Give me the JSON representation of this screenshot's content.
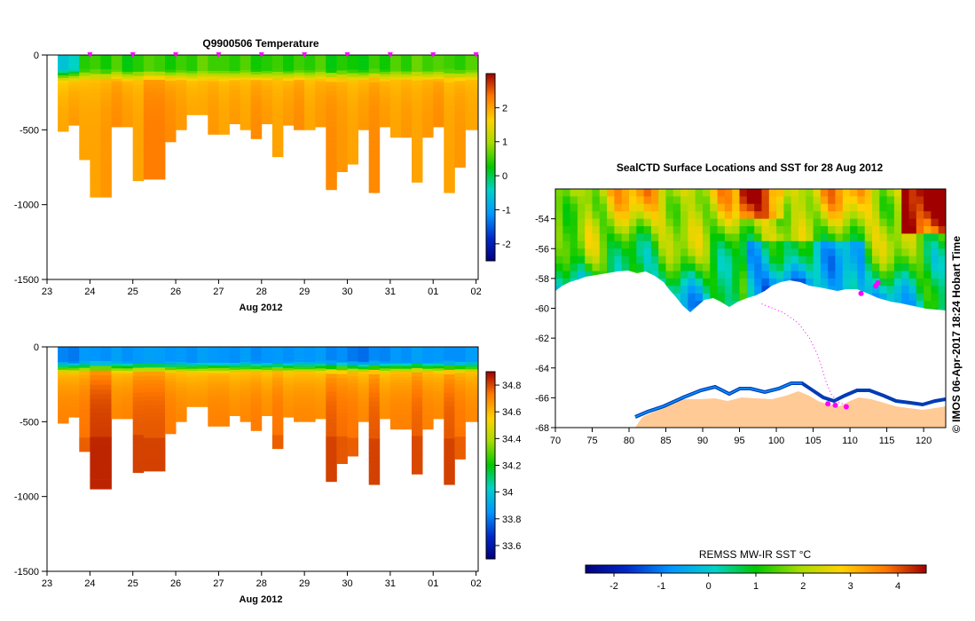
{
  "figure": {
    "credit": "© IMOS 06-Apr-2017 18:24 Hobart Time"
  },
  "chart_data": [
    {
      "type": "heatmap",
      "title": "Q9900506  Temperature",
      "xlabel": "Aug 2012",
      "ylabel": "",
      "x_tick_labels": [
        "23",
        "24",
        "25",
        "26",
        "27",
        "28",
        "29",
        "30",
        "31",
        "01",
        "02"
      ],
      "y_ticks": [
        0,
        -500,
        -1000,
        -1500
      ],
      "ylim": [
        -1500,
        0
      ],
      "colorbar": {
        "ticks": [
          -2,
          -1,
          0,
          1,
          2
        ],
        "range": [
          -2.5,
          3.0
        ]
      },
      "profile_markers_day": [
        24,
        25,
        26,
        27,
        28,
        29,
        30,
        31,
        32,
        33
      ],
      "profiles": {
        "start_day": [
          23.25,
          23.5,
          23.75,
          24.0,
          24.25,
          24.5,
          24.75,
          25.0,
          25.25,
          25.5,
          25.75,
          26.0,
          26.25,
          26.5,
          26.75,
          27.0,
          27.25,
          27.5,
          27.75,
          28.0,
          28.25,
          28.5,
          28.75,
          29.0,
          29.25,
          29.5,
          29.75,
          30.0,
          30.25,
          30.5,
          30.75,
          31.0,
          31.25,
          31.5,
          31.75,
          32.0,
          32.25,
          32.5,
          32.75
        ],
        "max_depth_m": [
          510,
          470,
          700,
          950,
          950,
          480,
          480,
          840,
          830,
          830,
          580,
          500,
          400,
          400,
          530,
          530,
          460,
          500,
          560,
          460,
          680,
          470,
          500,
          500,
          480,
          900,
          780,
          730,
          500,
          920,
          480,
          550,
          550,
          850,
          550,
          480,
          920,
          750,
          500
        ],
        "surface_value": [
          -0.6,
          -0.4,
          0.4,
          0.5,
          0.3,
          0.6,
          0.2,
          0.4,
          0.6,
          0.5,
          0.3,
          0.5,
          0.4,
          0.7,
          0.5,
          0.5,
          0.4,
          0.6,
          0.3,
          0.4,
          0.5,
          0.3,
          0.5,
          0.4,
          0.6,
          0.2,
          0.4,
          0.3,
          0.2,
          0.5,
          0.3,
          0.6,
          0.4,
          0.7,
          0.5,
          0.6,
          0.5,
          0.4,
          0.6
        ],
        "deep_value": [
          2.0,
          2.1,
          2.0,
          2.0,
          2.1,
          2.2,
          2.1,
          2.0,
          2.3,
          2.3,
          2.2,
          2.1,
          2.0,
          2.0,
          2.1,
          2.0,
          2.1,
          2.0,
          2.2,
          2.1,
          2.0,
          2.1,
          2.2,
          2.0,
          2.1,
          2.2,
          2.1,
          2.0,
          2.1,
          2.2,
          2.1,
          2.0,
          2.1,
          2.0,
          2.1,
          2.2,
          2.0,
          2.1,
          2.0
        ]
      }
    },
    {
      "type": "heatmap",
      "title": "",
      "xlabel": "Aug 2012",
      "ylabel": "",
      "x_tick_labels": [
        "23",
        "24",
        "25",
        "26",
        "27",
        "28",
        "29",
        "30",
        "31",
        "01",
        "02"
      ],
      "y_ticks": [
        0,
        -500,
        -1000,
        -1500
      ],
      "ylim": [
        -1500,
        0
      ],
      "colorbar": {
        "ticks": [
          33.6,
          33.8,
          34,
          34.2,
          34.4,
          34.6,
          34.8
        ],
        "tick_labels": [
          "33.6",
          "33.8",
          "34",
          "34.2",
          "34.4",
          "34.6",
          "34.8"
        ],
        "range": [
          33.5,
          34.9
        ]
      },
      "profiles": {
        "surface_value": [
          33.82,
          33.8,
          33.86,
          33.85,
          33.84,
          33.88,
          33.84,
          33.86,
          33.88,
          33.87,
          33.85,
          33.86,
          33.84,
          33.88,
          33.86,
          33.85,
          33.84,
          33.87,
          33.83,
          33.85,
          33.86,
          33.84,
          33.86,
          33.85,
          33.87,
          33.82,
          33.84,
          33.8,
          33.78,
          33.83,
          33.82,
          33.86,
          33.84,
          33.88,
          33.85,
          33.86,
          33.84,
          33.84,
          33.87
        ],
        "deep_value": [
          34.72,
          34.72,
          34.74,
          34.82,
          34.82,
          34.71,
          34.72,
          34.78,
          34.78,
          34.78,
          34.73,
          34.71,
          34.7,
          34.7,
          34.72,
          34.72,
          34.7,
          34.71,
          34.73,
          34.7,
          34.74,
          34.7,
          34.71,
          34.71,
          34.7,
          34.78,
          34.75,
          34.74,
          34.71,
          34.78,
          34.7,
          34.72,
          34.72,
          34.77,
          34.72,
          34.71,
          34.78,
          34.74,
          34.71
        ]
      }
    },
    {
      "type": "heatmap",
      "title": "SealCTD Surface Locations and SST for 28 Aug 2012",
      "xlabel": "",
      "ylabel": "",
      "xlim": [
        70,
        123
      ],
      "ylim": [
        -68,
        -52
      ],
      "x_ticks": [
        70,
        75,
        80,
        85,
        90,
        95,
        100,
        105,
        110,
        115,
        120
      ],
      "y_ticks": [
        -54,
        -56,
        -58,
        -60,
        -62,
        -64,
        -66,
        -68
      ],
      "colorbar": {
        "title": "REMSS MW-IR SST °C",
        "ticks": [
          -2,
          -1,
          0,
          1,
          2,
          3,
          4
        ],
        "range": [
          -2.6,
          4.6
        ]
      },
      "track": {
        "lon": [
          98,
          101,
          103,
          104.5,
          105.5,
          106.2,
          106.8,
          107.5,
          108.5,
          109.5
        ],
        "lat": [
          -59.7,
          -60.3,
          -61.0,
          -62.0,
          -63.0,
          -64.0,
          -65.0,
          -65.8,
          -66.3,
          -66.5
        ]
      },
      "locations": {
        "lon": [
          107.0,
          108.0,
          109.5,
          113.5,
          113.8,
          111.5
        ],
        "lat": [
          -66.4,
          -66.5,
          -66.6,
          -58.5,
          -58.3,
          -59.0
        ]
      }
    }
  ]
}
